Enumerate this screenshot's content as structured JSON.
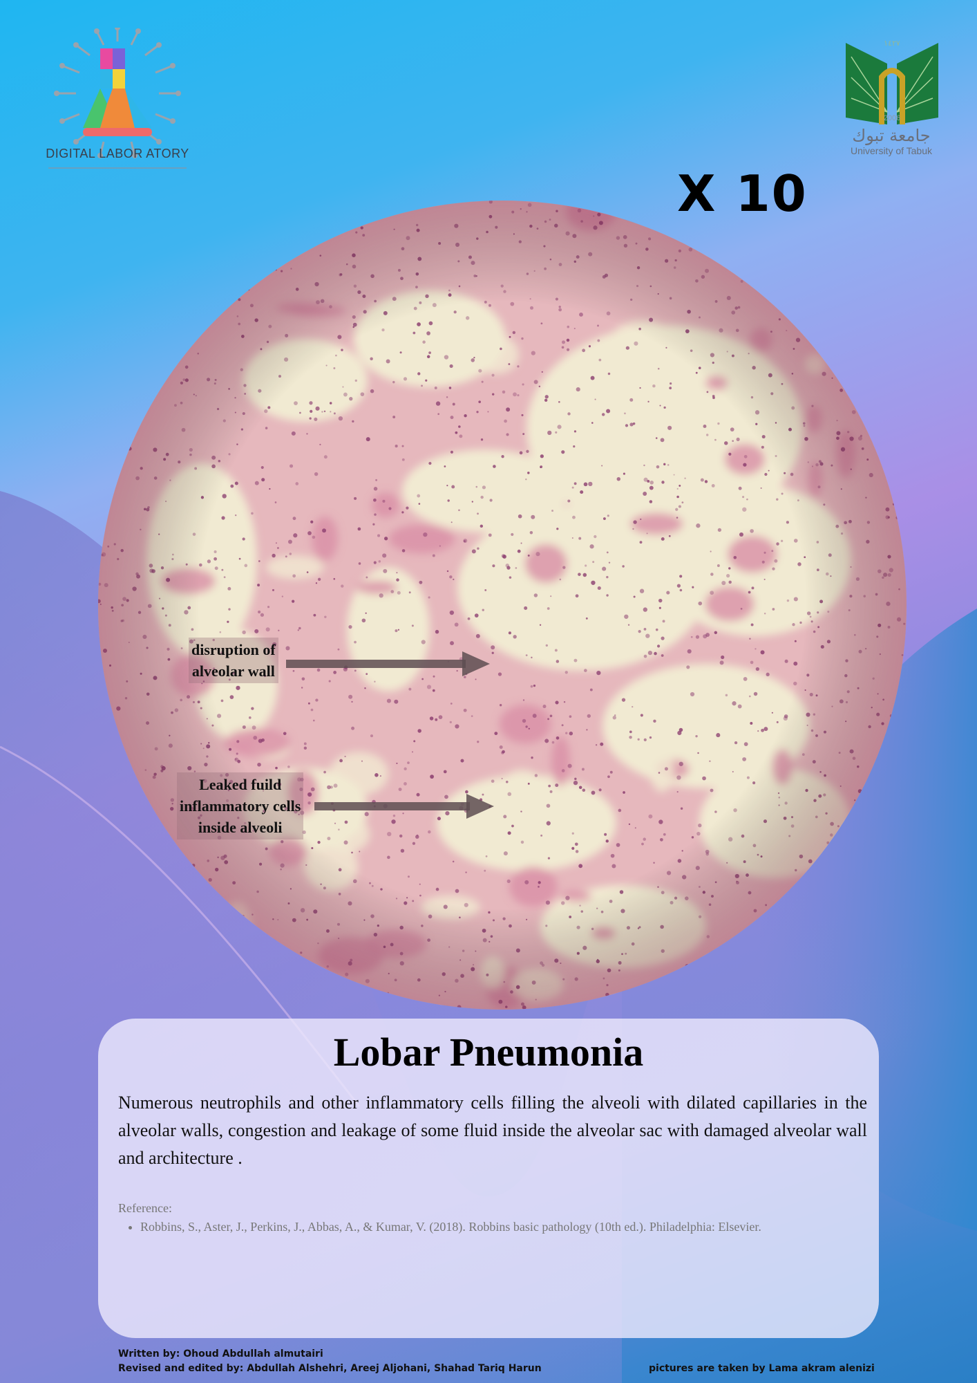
{
  "header": {
    "left_logo_text": "DIGITAL LABOR ATORY",
    "right_logo_year_arabic": "١٤٢٧",
    "right_logo_year": "2006",
    "right_logo_arabic": "جامعة تبوك",
    "right_logo_english": "University of Tabuk"
  },
  "magnification": "X 10",
  "annotations": [
    {
      "text_line1": "disruption of",
      "text_line2": "alveolar wall"
    },
    {
      "text_line1": "Leaked fuild",
      "text_line2": "inflammatory cells",
      "text_line3": "inside alveoli"
    }
  ],
  "card": {
    "title": "Lobar Pneumonia",
    "description": "Numerous neutrophils and other inflammatory cells filling the alveoli with dilated capillaries in the alveolar walls, congestion and leakage of some fluid inside the alveolar sac with damaged alveolar wall and architecture .",
    "reference_heading": "Reference:",
    "references": [
      "Robbins, S., Aster, J., Perkins, J., Abbas, A., & Kumar, V. (2018). Robbins basic pathology (10th ed.). Philadelphia: Elsevier."
    ]
  },
  "footer": {
    "written_by": "Written by:  Ohoud Abdullah almutairi",
    "revised_by": "Revised and edited by: Abdullah Alshehri, Areej Aljohani, Shahad Tariq Harun",
    "pictures_by": "pictures are taken by  Lama akram alenizi"
  },
  "colors": {
    "tissue_pink": "#d98fa6",
    "tissue_dark": "#8a3c6e",
    "background_cream": "#f1ead2",
    "logo_green": "#1b7a3c",
    "logo_gold": "#c9a227"
  }
}
